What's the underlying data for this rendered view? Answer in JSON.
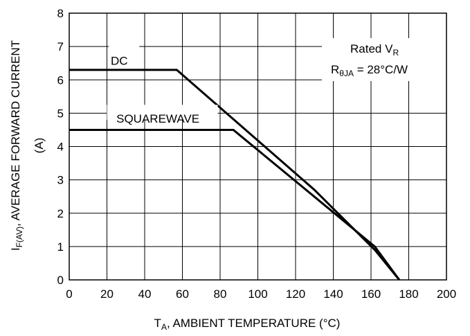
{
  "chart_data": {
    "type": "line",
    "xlabel": {
      "main": "T",
      "sub": "A",
      "rest": ", AMBIENT TEMPERATURE (°C)"
    },
    "ylabel": {
      "line1_main": "I",
      "line1_sub": "F(AV)",
      "line1_rest": ", AVERAGE FORWARD CURRENT",
      "line2": "(A)"
    },
    "xlim": [
      0,
      200
    ],
    "ylim": [
      0,
      8
    ],
    "x_ticks": [
      0,
      20,
      40,
      60,
      80,
      100,
      120,
      140,
      160,
      180,
      200
    ],
    "y_ticks": [
      0,
      1,
      2,
      3,
      4,
      5,
      6,
      7,
      8
    ],
    "grid": true,
    "series": [
      {
        "name": "DC",
        "x": [
          0,
          57,
          130,
          162,
          175
        ],
        "y": [
          6.3,
          6.3,
          2.7,
          0.9,
          0
        ]
      },
      {
        "name": "SQUAREWAVE",
        "x": [
          0,
          87,
          162,
          175
        ],
        "y": [
          4.5,
          4.5,
          1.0,
          0
        ]
      }
    ],
    "annotation": {
      "line1_main": "Rated V",
      "line1_sub": "R",
      "line2_main": "R",
      "line2_sub": "θJA",
      "line2_rest": " = 28°C/W"
    }
  }
}
